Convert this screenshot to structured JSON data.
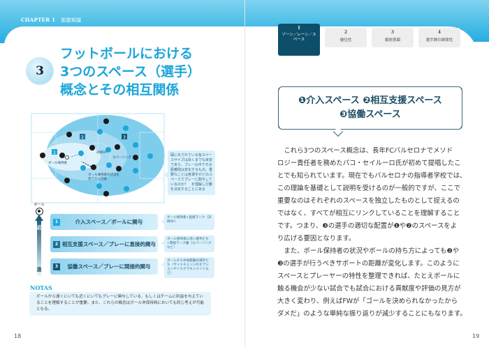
{
  "left_page": {
    "chapter_label": "CHAPTER 1",
    "chapter_title": "前提知識",
    "section_number": "3",
    "title_lines": [
      "フットボールにおける",
      "3つのスペース（選手）",
      "概念とその相互関係"
    ],
    "diagram": {
      "zone_labels": [
        "1",
        "2",
        "3"
      ],
      "annotations": {
        "holder": "ボール保持者",
        "opp_df": "対峙DF",
        "covering": "カバーリング",
        "intervene": [
          "ボール保持者の状況を",
          "見て介入可能"
        ]
      },
      "side_note": "図に示されている各スペースサイズはあくまでも目安であり、プレーの中でその距離間は変化するもの。重要なことは各選手がどのスペースでプレーに関与しているのか？　を理解し行動を決定することにある"
    },
    "scale": {
      "ball_label": "ボール",
      "near": "近",
      "far": "遠"
    },
    "rows": [
      {
        "num": "1",
        "label": "介入スペース／ボールに関与",
        "note": "ボール保持者+直接マーク（対峙DF）"
      },
      {
        "num": "2",
        "label": "相互支援スペース／プレーに直接的関与",
        "note": "ボール保持者に近い選手たち+間接マーク層（カバーリングなど）"
      },
      {
        "num": "3",
        "label": "協働スペース／プレーに間接的関与",
        "note": "ボールから中長距離の選手たち（サイドチェンジのオプションやリスクマネジメントなど）"
      }
    ],
    "notas_heading": "NOTAS",
    "notas_text": "ボールから遠くにいても近くにいてもプレーに関与している、もしくはチームに利益を与えていることを理解することが重要。また、これらの概念はボール非保持時においても同じ考えが可能となる。",
    "page_number": "18"
  },
  "right_page": {
    "tabs": [
      {
        "num": "1",
        "label": "ゾーン／レーン／スペース",
        "active": true
      },
      {
        "num": "2",
        "label": "優位性"
      },
      {
        "num": "3",
        "label": "戦術意図"
      },
      {
        "num": "4",
        "label": "選手間の関係性"
      }
    ],
    "callout_lines": [
      "❶介入スペース ❷相互支援スペース",
      "❸協働スペース"
    ],
    "body_lines": [
      "　これら3つのスペース概念は、長年FCバルセロナでメソド",
      "ロジー責任者を務めたパコ・セイルーロ氏が初めて提唱したこ",
      "とでも知られています。現在でもバルセロナの指導者学校では、",
      "この理論を基礎として説明を受けるのが一般的ですが、ここで",
      "重要なのはそれぞれのスペースを独立したものとして捉えるの",
      "ではなく、すべてが相互にリンクしていることを理解すること",
      "です。つまり、❸の選手の適切な配置が❶や❷のスペースをよ",
      "り広げる要因となります。",
      "　また、ボール保持者の状況やボールの持ち方によっても❷や",
      "❸の選手が行うべきサポートの距離が変化します。このように",
      "スペースとプレーヤーの特性を整理できれば、たとえボールに",
      "触る機会が少ない試合でも試合における貢献度や評価の見方が",
      "大きく変わり、例えばFWが「ゴールを決められなかったから",
      "ダメだ」のような単純な振り返りが減少することにもなります。"
    ],
    "page_number": "19"
  },
  "colors": {
    "brand_blue": "#1ca6d9",
    "dark_teal": "#0d4f6b",
    "team_a": "#1a1a1a",
    "team_b": "#1ea7dc"
  }
}
